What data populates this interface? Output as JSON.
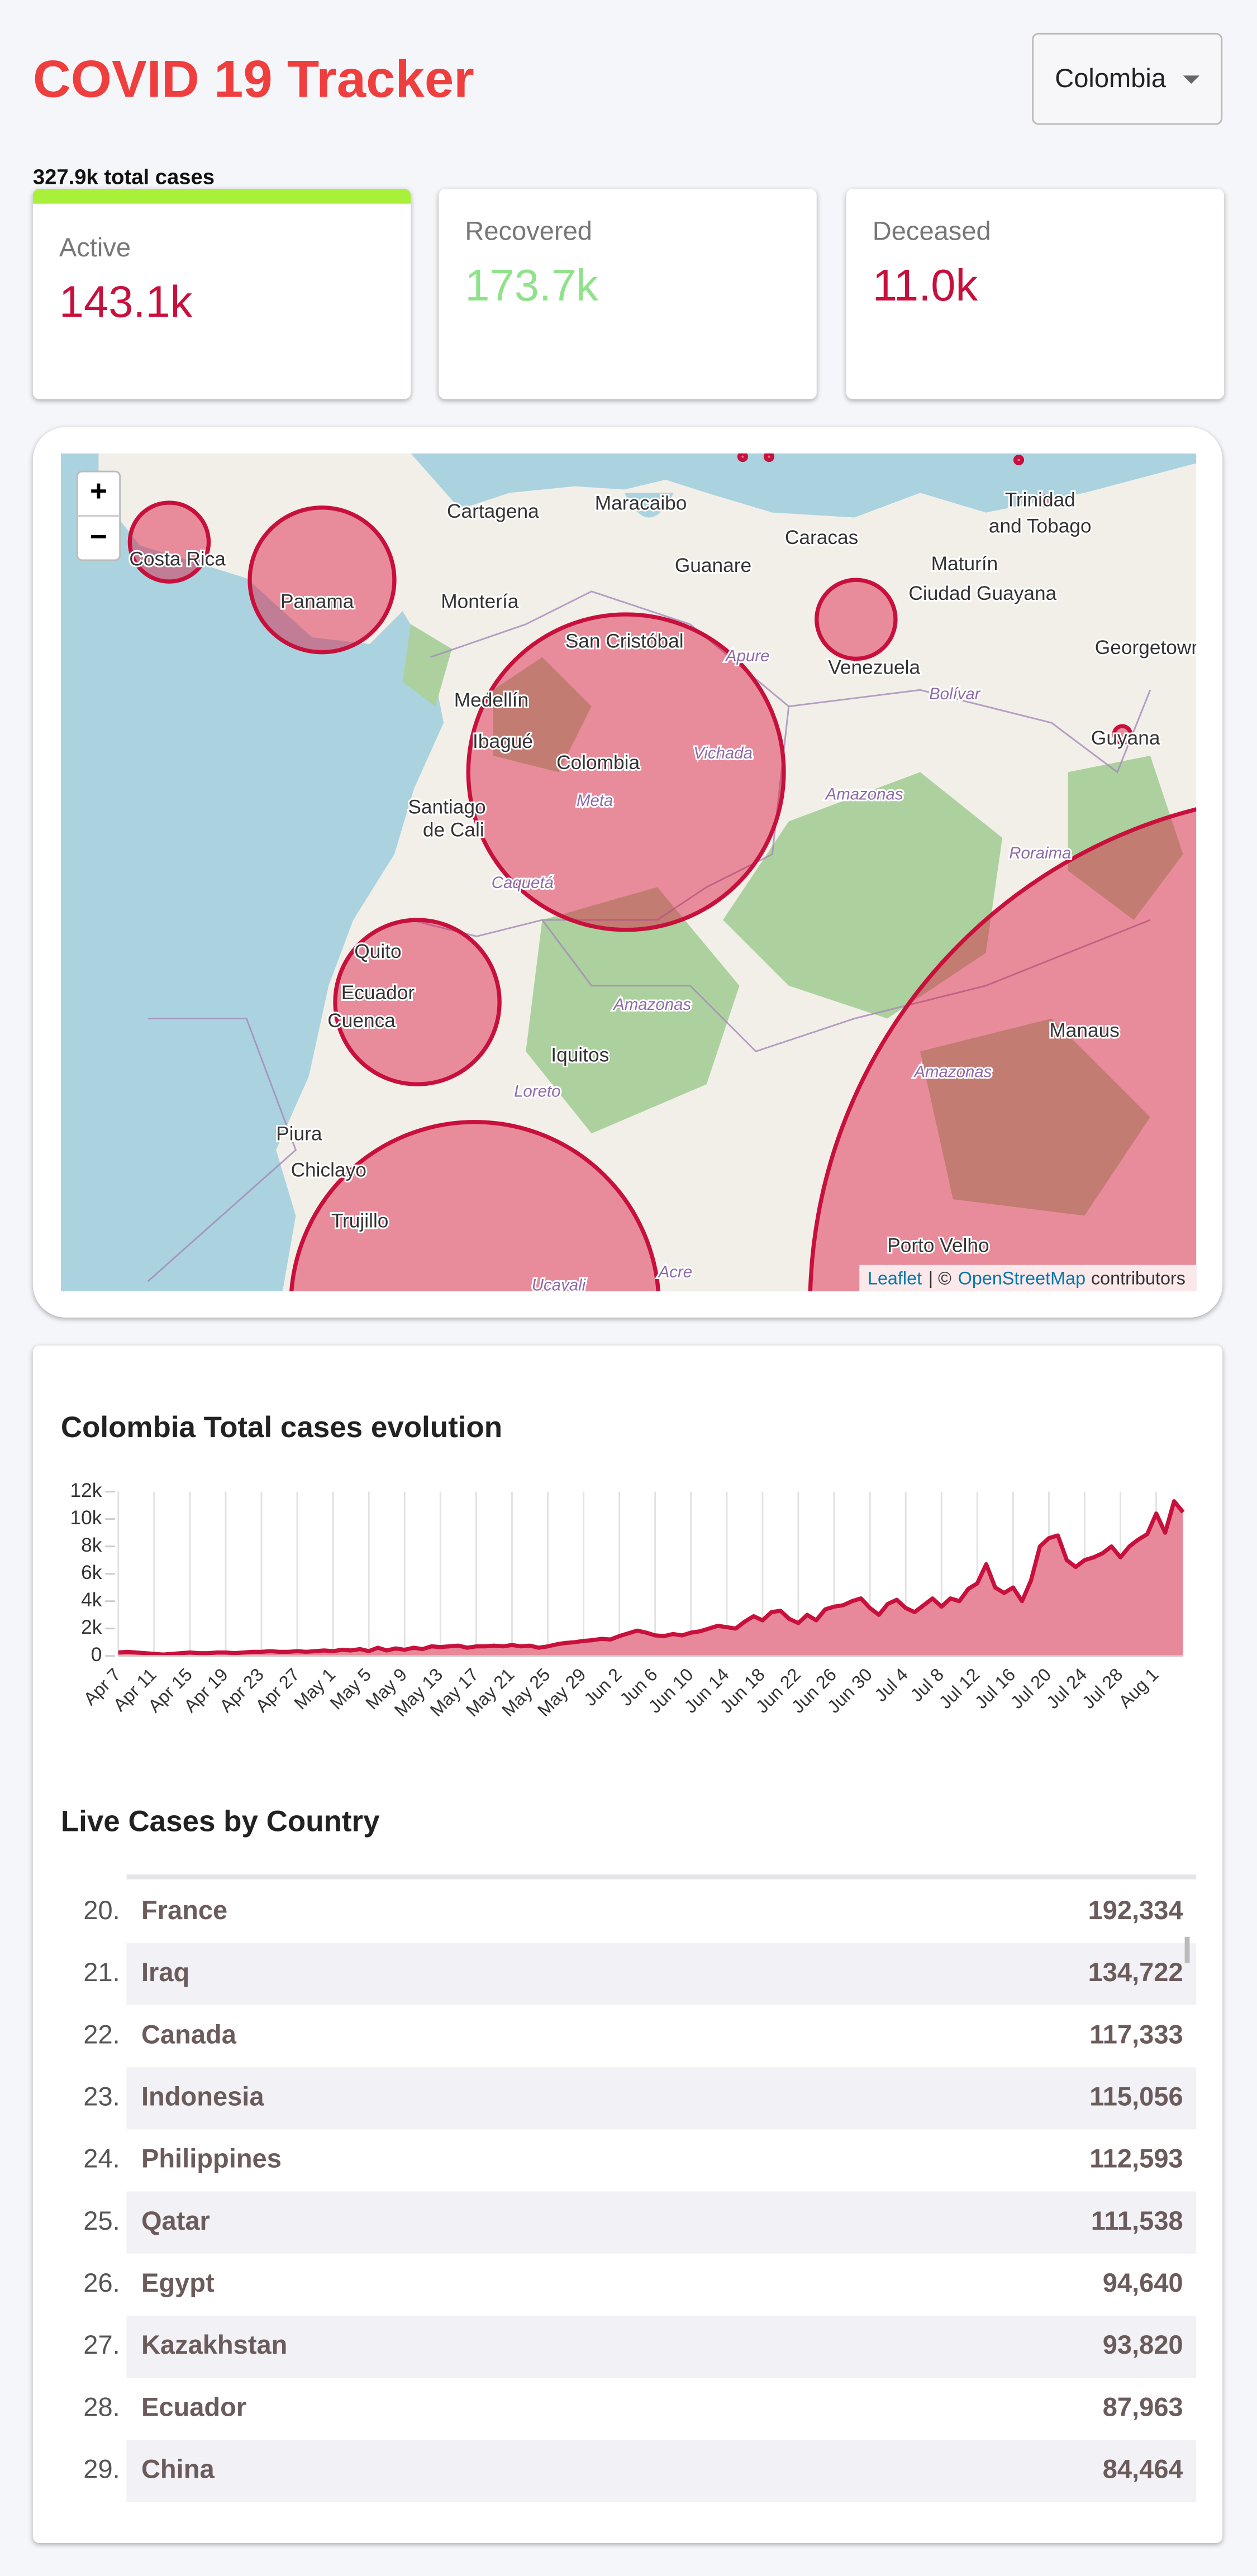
{
  "header": {
    "title": "COVID 19 Tracker",
    "country_select": "Colombia"
  },
  "summary": {
    "total": "327.9k total cases",
    "cards": [
      {
        "label": "Active",
        "value": "143.1k",
        "color": "#c8103c"
      },
      {
        "label": "Recovered",
        "value": "173.7k",
        "color": "#90e28a"
      },
      {
        "label": "Deceased",
        "value": "11.0k",
        "color": "#c8103c"
      }
    ]
  },
  "map": {
    "labels": [
      "Cartagena",
      "Maracaibo",
      "Caracas",
      "Guanare",
      "Maturín",
      "Ciudad Guayana",
      "Trinidad",
      "and Tobago",
      "Georgetown",
      "Guyana",
      "Costa Rica",
      "Panama",
      "Montería",
      "San Cristóbal",
      "Medellín",
      "Ibagué",
      "Colombia",
      "Venezuela",
      "Bolívar",
      "Amazonas",
      "Santiago",
      "de Cali",
      "Meta",
      "Vichada",
      "Roraima",
      "Quito",
      "Ecuador",
      "Cuenca",
      "Amazonas",
      "Iquitos",
      "Manaus",
      "Amazonas",
      "Loreto",
      "Piura",
      "Chiclayo",
      "Trujillo",
      "Porto Velho",
      "Ucayali",
      "Acre",
      "Apure",
      "Caquetá"
    ],
    "zoom_in": "+",
    "zoom_out": "−",
    "attribution": {
      "leaflet": "Leaflet",
      "separator": "| ©",
      "osm": "OpenStreetMap",
      "suffix": "contributors"
    }
  },
  "chart_data": {
    "type": "area",
    "title": "Colombia Total cases evolution",
    "color": "#c8103c",
    "fill": "#e8899b",
    "grid": "x",
    "categories": [
      "Apr 7",
      null,
      null,
      null,
      "Apr 11",
      null,
      null,
      null,
      "Apr 15",
      null,
      null,
      null,
      "Apr 19",
      null,
      null,
      null,
      "Apr 23",
      null,
      null,
      null,
      "Apr 27",
      null,
      null,
      null,
      "May 1",
      null,
      null,
      null,
      "May 5",
      null,
      null,
      null,
      "May 9",
      null,
      null,
      null,
      "May 13",
      null,
      null,
      null,
      "May 17",
      null,
      null,
      null,
      "May 21",
      null,
      null,
      null,
      "May 25",
      null,
      null,
      null,
      "May 29",
      null,
      null,
      null,
      "Jun 2",
      null,
      null,
      null,
      "Jun 6",
      null,
      null,
      null,
      "Jun 10",
      null,
      null,
      null,
      "Jun 14",
      null,
      null,
      null,
      "Jun 18",
      null,
      null,
      null,
      "Jun 22",
      null,
      null,
      null,
      "Jun 26",
      null,
      null,
      null,
      "Jun 30",
      null,
      null,
      null,
      "Jul 4",
      null,
      null,
      null,
      "Jul 8",
      null,
      null,
      null,
      "Jul 12",
      null,
      null,
      null,
      "Jul 16",
      null,
      null,
      null,
      "Jul 20",
      null,
      null,
      null,
      "Jul 24",
      null,
      null,
      null,
      "Jul 28",
      null,
      null,
      null,
      "Aug 1",
      null,
      null,
      null
    ],
    "values": [
      250,
      300,
      250,
      200,
      150,
      100,
      150,
      200,
      250,
      200,
      200,
      250,
      250,
      200,
      250,
      300,
      300,
      350,
      300,
      300,
      350,
      300,
      350,
      400,
      350,
      450,
      400,
      500,
      350,
      600,
      400,
      550,
      450,
      600,
      500,
      700,
      650,
      700,
      750,
      600,
      700,
      700,
      750,
      700,
      800,
      700,
      750,
      600,
      700,
      850,
      950,
      1000,
      1100,
      1150,
      1250,
      1200,
      1450,
      1650,
      1850,
      1700,
      1500,
      1450,
      1600,
      1500,
      1700,
      1800,
      2000,
      2200,
      2100,
      2000,
      2500,
      2900,
      2600,
      3200,
      3300,
      2700,
      2400,
      3000,
      2600,
      3400,
      3600,
      3700,
      4000,
      4200,
      3500,
      3000,
      3800,
      4100,
      3500,
      3200,
      3700,
      4200,
      3600,
      4200,
      4000,
      4900,
      5300,
      6700,
      5000,
      4600,
      5000,
      4000,
      5500,
      8000,
      8600,
      8800,
      7000,
      6500,
      7000,
      7200,
      7500,
      8000,
      7200,
      8000,
      8500,
      8900,
      10400,
      9000,
      11300,
      10500
    ],
    "ylim": [
      0,
      12000
    ],
    "yticks": [
      0,
      {
        "value": 2000,
        "label": "2k"
      },
      {
        "value": 4000,
        "label": "4k"
      },
      {
        "value": 6000,
        "label": "6k"
      },
      {
        "value": 8000,
        "label": "8k"
      },
      {
        "value": 10000,
        "label": "10k"
      },
      {
        "value": 12000,
        "label": "12k"
      }
    ]
  },
  "table": {
    "title": "Live Cases by Country",
    "rows": [
      [
        "20.",
        "France",
        "192,334"
      ],
      [
        "21.",
        "Iraq",
        "134,722"
      ],
      [
        "22.",
        "Canada",
        "117,333"
      ],
      [
        "23.",
        "Indonesia",
        "115,056"
      ],
      [
        "24.",
        "Philippines",
        "112,593"
      ],
      [
        "25.",
        "Qatar",
        "111,538"
      ],
      [
        "26.",
        "Egypt",
        "94,640"
      ],
      [
        "27.",
        "Kazakhstan",
        "93,820"
      ],
      [
        "28.",
        "Ecuador",
        "87,963"
      ],
      [
        "29.",
        "China",
        "84,464"
      ]
    ]
  }
}
